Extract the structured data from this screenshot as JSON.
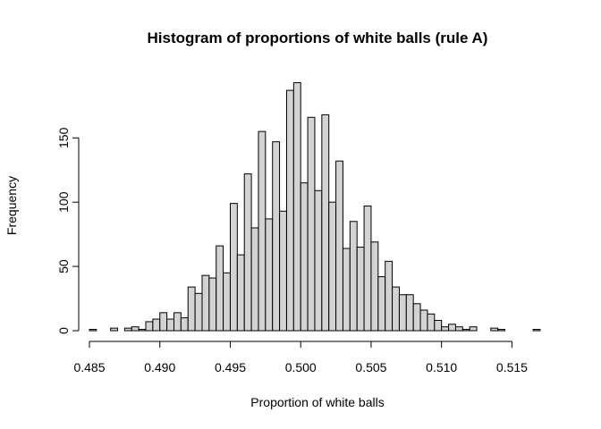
{
  "chart_data": {
    "type": "bar",
    "title": "Histogram of proportions of white balls (rule A)",
    "xlabel": "Proportion of white balls",
    "ylabel": "Frequency",
    "xlim": [
      0.485,
      0.5175
    ],
    "ylim": [
      0,
      195
    ],
    "x_ticks": [
      "0.485",
      "0.490",
      "0.495",
      "0.500",
      "0.505",
      "0.510",
      "0.515"
    ],
    "x_tick_values": [
      0.485,
      0.49,
      0.495,
      0.5,
      0.505,
      0.51,
      0.515
    ],
    "y_ticks": [
      "0",
      "50",
      "100",
      "150"
    ],
    "y_tick_values": [
      0,
      50,
      100,
      150
    ],
    "bin_width": 0.0005,
    "bin_start": 0.485,
    "values": [
      1,
      0,
      0,
      2,
      0,
      2,
      3,
      1,
      7,
      9,
      14,
      9,
      14,
      10,
      34,
      29,
      43,
      41,
      66,
      45,
      99,
      59,
      122,
      80,
      155,
      87,
      147,
      93,
      187,
      193,
      115,
      166,
      109,
      168,
      100,
      132,
      64,
      85,
      65,
      97,
      69,
      42,
      54,
      34,
      28,
      28,
      21,
      16,
      13,
      8,
      3,
      5,
      3,
      1,
      3,
      0,
      0,
      2,
      1,
      0,
      0,
      0,
      0,
      1
    ],
    "bar_color": "#d3d3d3",
    "edge_color": "#000000"
  }
}
